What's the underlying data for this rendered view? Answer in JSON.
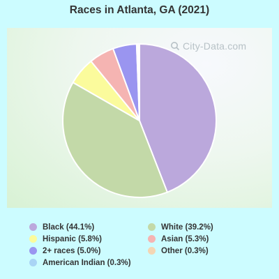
{
  "title": "Races in Atlanta, GA (2021)",
  "watermark": "City-Data.com",
  "chart_data": {
    "type": "pie",
    "title": "Races in Atlanta, GA (2021)",
    "start_angle_deg": 0,
    "slices": [
      {
        "label": "Black (44.1%)",
        "name": "Black",
        "value": 44.1,
        "color": "#bba8dc"
      },
      {
        "label": "White (39.2%)",
        "name": "White",
        "value": 39.2,
        "color": "#c3d9a8"
      },
      {
        "label": "Hispanic (5.8%)",
        "name": "Hispanic",
        "value": 5.8,
        "color": "#fbfb9c"
      },
      {
        "label": "Asian (5.3%)",
        "name": "Asian",
        "value": 5.3,
        "color": "#f5b4b2"
      },
      {
        "label": "2+ races (5.0%)",
        "name": "2+ races",
        "value": 5.0,
        "color": "#9a95f0"
      },
      {
        "label": "Other (0.3%)",
        "name": "Other",
        "value": 0.3,
        "color": "#f3d6b4"
      },
      {
        "label": "American Indian (0.3%)",
        "name": "American Indian",
        "value": 0.3,
        "color": "#a9d4f5"
      }
    ],
    "legend_order": [
      "Black (44.1%)",
      "White (39.2%)",
      "Hispanic (5.8%)",
      "Asian (5.3%)",
      "2+ races (5.0%)",
      "Other (0.3%)",
      "American Indian (0.3%)"
    ]
  }
}
